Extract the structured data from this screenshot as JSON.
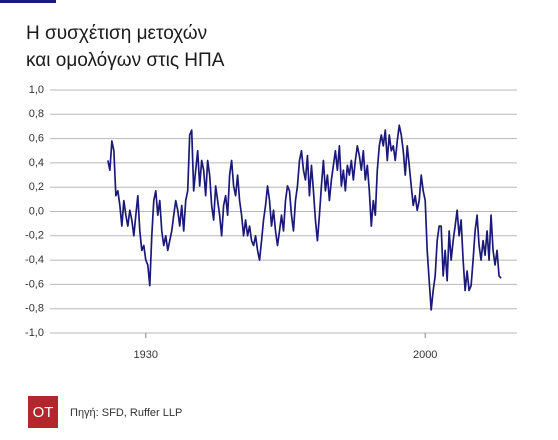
{
  "chart_data": {
    "type": "line",
    "title": [
      "Η συσχέτιση μετοχών",
      "και ομολόγων στις ΗΠΑ"
    ],
    "source": "Πηγή: SFD, Ruffer LLP",
    "logo": "OT",
    "xlim": [
      1906,
      2023
    ],
    "xticks": [
      1930,
      2000
    ],
    "ylim": [
      -1,
      1
    ],
    "yticks": [
      {
        "value": 1,
        "label": "1,0"
      },
      {
        "value": 0.8,
        "label": "0,8"
      },
      {
        "value": 0.6,
        "label": "0,6"
      },
      {
        "value": 0.4,
        "label": "0,4"
      },
      {
        "value": 0.2,
        "label": "0,2"
      },
      {
        "value": 0,
        "label": "0,0"
      },
      {
        "value": -0.2,
        "label": "-0,2"
      },
      {
        "value": -0.4,
        "label": "-0,4"
      },
      {
        "value": -0.6,
        "label": "-0,6"
      },
      {
        "value": -0.8,
        "label": "-0,8"
      },
      {
        "value": -1,
        "label": "-1,0"
      }
    ],
    "grid": true,
    "x": [
      1920.5,
      1921,
      1921.5,
      1922,
      1922.5,
      1923,
      1923.5,
      1924,
      1924.5,
      1925,
      1925.5,
      1926,
      1926.5,
      1927,
      1927.5,
      1928,
      1928.5,
      1929,
      1929.5,
      1930,
      1930.5,
      1931,
      1931.5,
      1932,
      1932.5,
      1933,
      1933.5,
      1934,
      1934.5,
      1935,
      1935.5,
      1936,
      1936.5,
      1937,
      1937.5,
      1938,
      1938.5,
      1939,
      1939.5,
      1940,
      1940.5,
      1941,
      1941.5,
      1942,
      1942.5,
      1943,
      1943.5,
      1944,
      1944.5,
      1945,
      1945.5,
      1946,
      1946.5,
      1947,
      1947.5,
      1948,
      1948.5,
      1949,
      1949.5,
      1950,
      1950.5,
      1951,
      1951.5,
      1952,
      1952.5,
      1953,
      1953.5,
      1954,
      1954.5,
      1955,
      1955.5,
      1956,
      1956.5,
      1957,
      1957.5,
      1958,
      1958.5,
      1959,
      1959.5,
      1960,
      1960.5,
      1961,
      1961.5,
      1962,
      1962.5,
      1963,
      1963.5,
      1964,
      1964.5,
      1965,
      1965.5,
      1966,
      1966.5,
      1967,
      1967.5,
      1968,
      1968.5,
      1969,
      1969.5,
      1970,
      1970.5,
      1971,
      1971.5,
      1972,
      1972.5,
      1973,
      1973.5,
      1974,
      1974.5,
      1975,
      1975.5,
      1976,
      1976.5,
      1977,
      1977.5,
      1978,
      1978.5,
      1979,
      1979.5,
      1980,
      1980.5,
      1981,
      1981.5,
      1982,
      1982.5,
      1983,
      1983.5,
      1984,
      1984.5,
      1985,
      1985.5,
      1986,
      1986.5,
      1987,
      1987.5,
      1988,
      1988.5,
      1989,
      1989.5,
      1990,
      1990.5,
      1991,
      1991.5,
      1992,
      1992.5,
      1993,
      1993.5,
      1994,
      1994.5,
      1995,
      1995.5,
      1996,
      1996.5,
      1997,
      1997.5,
      1998,
      1998.5,
      1999,
      1999.5,
      2000,
      2000.5,
      2001,
      2001.5,
      2002,
      2002.5,
      2003,
      2003.5,
      2004,
      2004.5,
      2005,
      2005.5,
      2006,
      2006.5,
      2007,
      2007.5,
      2008,
      2008.5,
      2009,
      2009.5,
      2010,
      2010.5,
      2011,
      2011.5,
      2012,
      2012.5,
      2013,
      2013.5,
      2014,
      2014.5,
      2015,
      2015.5,
      2016,
      2016.5,
      2017,
      2017.5,
      2018,
      2018.5,
      2019
    ],
    "series": [
      {
        "color": "#1b1a78",
        "values": [
          0.42,
          0.34,
          0.58,
          0.5,
          0.13,
          0.17,
          0.05,
          -0.12,
          0.09,
          -0.03,
          -0.12,
          0.01,
          -0.07,
          -0.2,
          -0.03,
          0.13,
          -0.16,
          -0.32,
          -0.28,
          -0.4,
          -0.44,
          -0.61,
          -0.2,
          0.09,
          0.17,
          -0.03,
          0.09,
          -0.16,
          -0.28,
          -0.2,
          -0.32,
          -0.24,
          -0.16,
          -0.03,
          0.09,
          0.01,
          -0.12,
          0.05,
          -0.16,
          0.09,
          0.17,
          0.63,
          0.67,
          0.17,
          0.34,
          0.5,
          0.21,
          0.42,
          0.34,
          0.13,
          0.42,
          0.3,
          0.05,
          -0.07,
          0.21,
          0.09,
          -0.03,
          -0.2,
          0.05,
          0.13,
          -0.03,
          0.3,
          0.42,
          0.21,
          0.13,
          0.3,
          0.09,
          -0.03,
          -0.2,
          -0.07,
          -0.2,
          -0.12,
          -0.24,
          -0.28,
          -0.2,
          -0.32,
          -0.4,
          -0.24,
          -0.07,
          0.05,
          0.21,
          0.09,
          -0.12,
          0.01,
          -0.16,
          -0.28,
          -0.16,
          -0.03,
          -0.16,
          0.09,
          0.21,
          0.17,
          -0.03,
          -0.16,
          0.09,
          0.21,
          0.42,
          0.5,
          0.34,
          0.26,
          0.46,
          0.13,
          0.38,
          0.17,
          -0.07,
          -0.24,
          -0.03,
          0.21,
          0.42,
          0.17,
          0.3,
          0.09,
          0.26,
          0.38,
          0.5,
          0.34,
          0.54,
          0.21,
          0.34,
          0.17,
          0.38,
          0.3,
          0.42,
          0.26,
          0.42,
          0.54,
          0.46,
          0.34,
          0.5,
          0.26,
          0.38,
          0.17,
          -0.12,
          0.09,
          -0.03,
          0.34,
          0.54,
          0.63,
          0.54,
          0.67,
          0.42,
          0.63,
          0.5,
          0.54,
          0.42,
          0.58,
          0.71,
          0.63,
          0.5,
          0.3,
          0.54,
          0.38,
          0.21,
          0.05,
          0.13,
          0.01,
          0.09,
          0.3,
          0.17,
          0.09,
          -0.32,
          -0.57,
          -0.81,
          -0.65,
          -0.53,
          -0.24,
          -0.12,
          -0.12,
          -0.53,
          -0.32,
          -0.57,
          -0.16,
          -0.4,
          -0.24,
          -0.12,
          0.01,
          -0.2,
          -0.07,
          -0.4,
          -0.65,
          -0.49,
          -0.65,
          -0.61,
          -0.4,
          -0.16,
          -0.03,
          -0.28,
          -0.4,
          -0.24,
          -0.36,
          -0.16,
          -0.4,
          -0.03,
          -0.32,
          -0.44,
          -0.32,
          -0.53,
          -0.55
        ]
      }
    ]
  }
}
